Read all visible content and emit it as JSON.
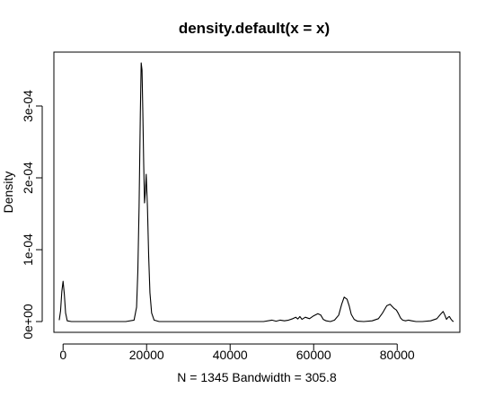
{
  "chart_data": {
    "type": "line",
    "title": "density.default(x = x)",
    "xlabel": "N = 1345   Bandwidth = 305.8",
    "ylabel": "Density",
    "xlim": [
      -2200,
      95000
    ],
    "ylim": [
      -1.5e-05,
      0.000375
    ],
    "x_ticks": [
      0,
      20000,
      40000,
      60000,
      80000
    ],
    "x_tick_labels": [
      "0",
      "20000",
      "40000",
      "60000",
      "80000"
    ],
    "y_ticks": [
      0,
      0.0001,
      0.0002,
      0.0003
    ],
    "y_tick_labels": [
      "0e+00",
      "1e-04",
      "2e-04",
      "3e-04"
    ],
    "grid": false,
    "legend": "none",
    "line_color": "#000000",
    "series": [
      {
        "x": [
          -918,
          -600,
          -300,
          0,
          300,
          600,
          1000,
          2000,
          5000,
          10000,
          15000,
          17000,
          17600,
          17900,
          18200,
          18500,
          18700,
          18900,
          19100,
          19300,
          19500,
          19700,
          19900,
          20200,
          20500,
          20800,
          21200,
          21800,
          23000,
          30000,
          40000,
          48000,
          50000,
          51000,
          52000,
          53000,
          54000,
          55000,
          55700,
          56200,
          56700,
          57200,
          58000,
          59000,
          60000,
          61000,
          61700,
          62300,
          63000,
          64000,
          65000,
          66000,
          66700,
          67300,
          68000,
          68500,
          69000,
          69700,
          70500,
          72000,
          74000,
          75500,
          76500,
          77500,
          78300,
          78800,
          79300,
          79800,
          80300,
          80800,
          81300,
          82000,
          82700,
          83500,
          84500,
          86000,
          88000,
          89500,
          90500,
          91000,
          91400,
          91800,
          92200,
          92500,
          92800,
          93200,
          93500
        ],
        "y": [
          2e-06,
          1.5e-05,
          4.2e-05,
          5.6e-05,
          3.8e-05,
          1.2e-05,
          1e-06,
          0,
          0,
          0,
          0,
          2e-06,
          2e-05,
          7e-05,
          0.00016,
          0.00029,
          0.00036,
          0.00035,
          0.00029,
          0.00022,
          0.000165,
          0.00018,
          0.000205,
          0.00016,
          9e-05,
          4e-05,
          1.2e-05,
          2e-06,
          0,
          0,
          0,
          0,
          2e-06,
          5e-07,
          2e-06,
          1e-06,
          2e-06,
          4e-06,
          6e-06,
          3.5e-06,
          7e-06,
          3e-06,
          6e-06,
          4e-06,
          8e-06,
          1.1e-05,
          9e-06,
          3e-06,
          1e-06,
          0,
          2e-06,
          9e-06,
          2.4e-05,
          3.4e-05,
          3.1e-05,
          2.2e-05,
          1e-05,
          3e-06,
          5e-07,
          0,
          1e-06,
          4e-06,
          1.2e-05,
          2.2e-05,
          2.4e-05,
          2.1e-05,
          1.8e-05,
          1.6e-05,
          1.1e-05,
          5e-06,
          2e-06,
          1e-06,
          2e-06,
          1e-06,
          0,
          0,
          1e-06,
          4e-06,
          1.1e-05,
          1.4e-05,
          9e-06,
          3e-06,
          6e-06,
          7e-06,
          4e-06,
          1e-06,
          0
        ]
      }
    ]
  }
}
